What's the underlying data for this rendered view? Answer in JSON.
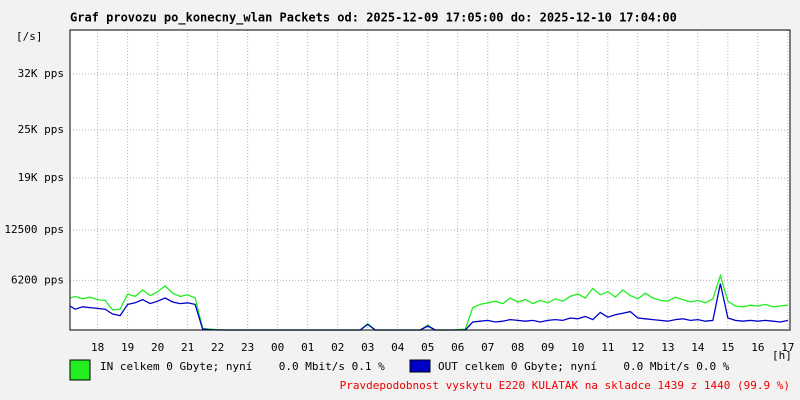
{
  "chart_data": {
    "type": "line",
    "title": "Graf provozu po_konecny_wlan Packets od: 2025-12-09 17:05:00 do: 2025-12-10 17:04:00",
    "ylabel": "[/s]",
    "xlabel": "[h]",
    "footer": "Pravdepodobnost vyskytu E220 KULATAK na skladce 1439 z 1440 (99.9 %)",
    "x": [
      17.08,
      17.25,
      17.5,
      17.75,
      18,
      18.25,
      18.5,
      18.75,
      19,
      19.25,
      19.5,
      19.75,
      20,
      20.25,
      20.5,
      20.75,
      21,
      21.25,
      21.5,
      21.75,
      22,
      22.25,
      22.5,
      22.75,
      23,
      23.25,
      23.5,
      23.75,
      24,
      24.25,
      24.5,
      24.75,
      25,
      25.25,
      25.5,
      25.75,
      26,
      26.25,
      26.5,
      26.75,
      27,
      27.25,
      27.5,
      27.75,
      28,
      28.25,
      28.5,
      28.75,
      29,
      29.25,
      29.5,
      29.75,
      30,
      30.25,
      30.5,
      30.75,
      31,
      31.25,
      31.5,
      31.75,
      32,
      32.25,
      32.5,
      32.75,
      33,
      33.25,
      33.5,
      33.75,
      34,
      34.25,
      34.5,
      34.75,
      35,
      35.25,
      35.5,
      35.75,
      36,
      36.25,
      36.5,
      36.75,
      37,
      37.25,
      37.5,
      37.75,
      38,
      38.25,
      38.5,
      38.75,
      39,
      39.25,
      39.5,
      39.75,
      40,
      40.25,
      40.5,
      40.75,
      41
    ],
    "series": [
      {
        "name": "IN celkem 0 Gbyte; nyní    0.0 Mbit/s 0.1 %",
        "color": "#22ee22",
        "values": [
          4000,
          4200,
          3900,
          4100,
          3800,
          3700,
          2500,
          2600,
          4500,
          4200,
          5000,
          4300,
          4800,
          5500,
          4600,
          4200,
          4400,
          4000,
          200,
          100,
          50,
          0,
          0,
          0,
          0,
          0,
          0,
          0,
          0,
          0,
          0,
          0,
          0,
          0,
          0,
          0,
          0,
          0,
          0,
          0,
          800,
          0,
          0,
          0,
          0,
          0,
          0,
          0,
          600,
          0,
          0,
          0,
          50,
          100,
          2800,
          3200,
          3400,
          3600,
          3300,
          4000,
          3500,
          3800,
          3300,
          3700,
          3400,
          3900,
          3600,
          4200,
          4500,
          4000,
          5200,
          4400,
          4800,
          4100,
          5000,
          4300,
          3900,
          4600,
          4000,
          3700,
          3600,
          4100,
          3800,
          3500,
          3700,
          3400,
          3900,
          6800,
          3600,
          3000,
          2900,
          3100,
          3000,
          3200,
          2900,
          3000,
          3100
        ]
      },
      {
        "name": "OUT celkem 0 Gbyte; nyní    0.0 Mbit/s 0.0 %",
        "color": "#0000cc",
        "values": [
          3000,
          2600,
          2900,
          2800,
          2700,
          2600,
          2000,
          1800,
          3200,
          3400,
          3800,
          3300,
          3600,
          4000,
          3500,
          3300,
          3400,
          3200,
          100,
          50,
          0,
          0,
          0,
          0,
          0,
          0,
          0,
          0,
          0,
          0,
          0,
          0,
          0,
          0,
          0,
          0,
          0,
          0,
          0,
          0,
          700,
          0,
          0,
          0,
          0,
          0,
          0,
          0,
          500,
          0,
          0,
          0,
          0,
          0,
          1000,
          1100,
          1200,
          1000,
          1100,
          1300,
          1200,
          1100,
          1200,
          1000,
          1200,
          1300,
          1200,
          1500,
          1400,
          1700,
          1300,
          2200,
          1600,
          1900,
          2100,
          2300,
          1500,
          1400,
          1300,
          1200,
          1100,
          1300,
          1400,
          1200,
          1300,
          1100,
          1200,
          5800,
          1500,
          1200,
          1100,
          1200,
          1100,
          1200,
          1100,
          1000,
          1200
        ]
      }
    ],
    "xlim": [
      17.08,
      41.07
    ],
    "xticks": [
      18,
      19,
      20,
      21,
      22,
      23,
      {
        "value": 24,
        "label": "00"
      },
      {
        "value": 25,
        "label": "01"
      },
      {
        "value": 26,
        "label": "02"
      },
      {
        "value": 27,
        "label": "03"
      },
      {
        "value": 28,
        "label": "04"
      },
      {
        "value": 29,
        "label": "05"
      },
      {
        "value": 30,
        "label": "06"
      },
      {
        "value": 31,
        "label": "07"
      },
      {
        "value": 32,
        "label": "08"
      },
      {
        "value": 33,
        "label": "09"
      },
      {
        "value": 34,
        "label": "10"
      },
      {
        "value": 35,
        "label": "11"
      },
      {
        "value": 36,
        "label": "12"
      },
      {
        "value": 37,
        "label": "13"
      },
      {
        "value": 38,
        "label": "14"
      },
      {
        "value": 39,
        "label": "15"
      },
      {
        "value": 40,
        "label": "16"
      },
      {
        "value": 41,
        "label": "17"
      }
    ],
    "ylim": [
      0,
      37500
    ],
    "yticks": [
      {
        "value": 6200,
        "label": "6200 pps"
      },
      {
        "value": 12500,
        "label": "12500 pps"
      },
      {
        "value": 19000,
        "label": "19K pps"
      },
      {
        "value": 25000,
        "label": "25K pps"
      },
      {
        "value": 32000,
        "label": "32K pps"
      }
    ],
    "grid": true
  }
}
